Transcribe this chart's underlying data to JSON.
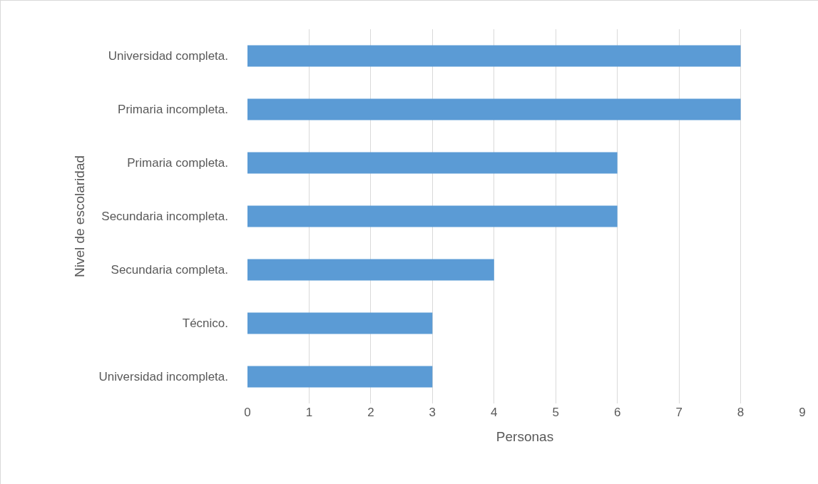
{
  "chart_data": {
    "type": "bar",
    "orientation": "horizontal",
    "xlabel": "Personas",
    "ylabel": "Nivel de escolaridad",
    "categories": [
      "Universidad completa.",
      "Primaria incompleta.",
      "Primaria completa.",
      "Secundaria incompleta.",
      "Secundaria completa.",
      "Técnico.",
      "Universidad incompleta."
    ],
    "values": [
      8,
      8,
      6,
      6,
      4,
      3,
      3
    ],
    "color": "#5b9bd5",
    "xlim": [
      0,
      9
    ],
    "xticks": [
      0,
      1,
      2,
      3,
      4,
      5,
      6,
      7,
      8,
      9
    ],
    "grid": "x"
  }
}
